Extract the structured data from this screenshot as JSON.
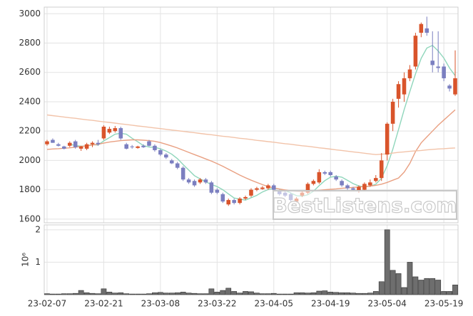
{
  "chart_data": {
    "type": "candlestick",
    "categories": [
      "23-02-07",
      null,
      null,
      null,
      null,
      null,
      null,
      null,
      null,
      null,
      "23-02-21",
      null,
      null,
      null,
      null,
      null,
      null,
      null,
      null,
      null,
      "23-03-08",
      null,
      null,
      null,
      null,
      null,
      null,
      null,
      null,
      null,
      "23-03-22",
      null,
      null,
      null,
      null,
      null,
      null,
      null,
      null,
      null,
      "23-04-05",
      null,
      null,
      null,
      null,
      null,
      null,
      null,
      null,
      null,
      "23-04-19",
      null,
      null,
      null,
      null,
      null,
      null,
      null,
      null,
      null,
      "23-05-04",
      null,
      null,
      null,
      null,
      null,
      null,
      null,
      null,
      null,
      "23-05-19",
      null,
      null
    ],
    "open": [
      2110,
      2140,
      2110,
      2095,
      2100,
      2130,
      2080,
      2080,
      2110,
      2120,
      2150,
      2190,
      2200,
      2220,
      2110,
      2095,
      2085,
      2100,
      2130,
      2100,
      2070,
      2040,
      2000,
      1980,
      1950,
      1870,
      1860,
      1850,
      1870,
      1850,
      1800,
      1770,
      1700,
      1730,
      1710,
      1740,
      1760,
      1800,
      1805,
      1810,
      1830,
      1790,
      1780,
      1770,
      1720,
      1760,
      1780,
      1840,
      1850,
      1920,
      1920,
      1890,
      1860,
      1830,
      1810,
      1790,
      1800,
      1830,
      1860,
      1880,
      2040,
      2250,
      2420,
      2450,
      2560,
      2640,
      2870,
      2900,
      2680,
      2640,
      2640,
      2510,
      2450
    ],
    "high": [
      2140,
      2150,
      2120,
      2100,
      2130,
      2140,
      2100,
      2120,
      2130,
      2140,
      2240,
      2230,
      2235,
      2230,
      2120,
      2105,
      2100,
      2110,
      2140,
      2110,
      2080,
      2050,
      2010,
      1990,
      1960,
      1880,
      1870,
      1880,
      1880,
      1860,
      1810,
      1780,
      1740,
      1740,
      1750,
      1760,
      1810,
      1820,
      1825,
      1840,
      1840,
      1800,
      1790,
      1780,
      1750,
      1790,
      1850,
      1870,
      1940,
      1930,
      1930,
      1900,
      1870,
      1840,
      1820,
      1830,
      1850,
      1870,
      1900,
      2050,
      2260,
      2420,
      2540,
      2600,
      2650,
      2870,
      2940,
      2980,
      2880,
      2880,
      2660,
      2520,
      2750
    ],
    "low": [
      2100,
      2120,
      2095,
      2075,
      2090,
      2080,
      2065,
      2070,
      2090,
      2100,
      2140,
      2180,
      2190,
      2140,
      2075,
      2080,
      2080,
      2085,
      2095,
      2060,
      2030,
      2010,
      1975,
      1940,
      1860,
      1840,
      1820,
      1840,
      1840,
      1770,
      1770,
      1710,
      1690,
      1700,
      1700,
      1730,
      1750,
      1790,
      1800,
      1800,
      1790,
      1760,
      1750,
      1720,
      1700,
      1750,
      1770,
      1830,
      1840,
      1900,
      1890,
      1860,
      1820,
      1800,
      1790,
      1780,
      1790,
      1820,
      1850,
      1860,
      2000,
      2200,
      2360,
      2400,
      2540,
      2620,
      2840,
      2850,
      2600,
      2600,
      2540,
      2470,
      2440
    ],
    "close": [
      2130,
      2120,
      2100,
      2080,
      2120,
      2090,
      2095,
      2110,
      2120,
      2110,
      2230,
      2215,
      2220,
      2150,
      2080,
      2090,
      2095,
      2090,
      2100,
      2070,
      2040,
      2020,
      1980,
      1950,
      1870,
      1850,
      1830,
      1870,
      1850,
      1780,
      1780,
      1720,
      1730,
      1710,
      1740,
      1750,
      1800,
      1810,
      1815,
      1830,
      1800,
      1770,
      1760,
      1730,
      1740,
      1780,
      1840,
      1860,
      1920,
      1910,
      1900,
      1870,
      1830,
      1810,
      1800,
      1820,
      1840,
      1850,
      1880,
      2000,
      2250,
      2400,
      2520,
      2560,
      2620,
      2850,
      2930,
      2870,
      2650,
      2630,
      2560,
      2490,
      2560
    ],
    "up_color": "#d9542b",
    "down_color": "#7b7fc0",
    "series": [
      {
        "color": "#8fd6bb",
        "values": [
          null,
          null,
          null,
          null,
          2110,
          2102,
          2097,
          2099,
          2107,
          2105,
          2133,
          2155,
          2179,
          2185,
          2179,
          2151,
          2127,
          2101,
          2091,
          2089,
          2079,
          2064,
          2042,
          2012,
          1972,
          1934,
          1896,
          1874,
          1854,
          1836,
          1822,
          1800,
          1772,
          1744,
          1736,
          1730,
          1746,
          1762,
          1785,
          1801,
          1811,
          1805,
          1795,
          1778,
          1760,
          1756,
          1766,
          1790,
          1828,
          1862,
          1886,
          1892,
          1886,
          1864,
          1842,
          1826,
          1820,
          1824,
          1838,
          1878,
          1964,
          2076,
          2210,
          2346,
          2470,
          2590,
          2696,
          2766,
          2784,
          2746,
          2698,
          2630,
          2578
        ]
      },
      {
        "color": "#e9a082",
        "values": [
          2075,
          2078,
          2080,
          2083,
          2086,
          2090,
          2095,
          2100,
          2105,
          2110,
          2118,
          2125,
          2130,
          2135,
          2138,
          2140,
          2140,
          2138,
          2135,
          2130,
          2122,
          2110,
          2098,
          2085,
          2070,
          2055,
          2040,
          2025,
          2010,
          1995,
          1978,
          1960,
          1940,
          1920,
          1900,
          1882,
          1865,
          1850,
          1835,
          1822,
          1812,
          1805,
          1798,
          1793,
          1790,
          1789,
          1790,
          1793,
          1796,
          1800,
          1803,
          1806,
          1810,
          1813,
          1816,
          1819,
          1822,
          1825,
          1830,
          1838,
          1850,
          1865,
          1880,
          1920,
          1980,
          2060,
          2120,
          2160,
          2200,
          2240,
          2275,
          2310,
          2345
        ]
      },
      {
        "color": "#f2c3a9",
        "values": [
          2310,
          2305,
          2301,
          2296,
          2291,
          2287,
          2282,
          2277,
          2273,
          2268,
          2263,
          2259,
          2254,
          2249,
          2245,
          2240,
          2235,
          2231,
          2226,
          2221,
          2217,
          2212,
          2207,
          2203,
          2198,
          2193,
          2189,
          2184,
          2179,
          2175,
          2170,
          2165,
          2161,
          2156,
          2151,
          2147,
          2142,
          2137,
          2133,
          2128,
          2124,
          2119,
          2114,
          2110,
          2105,
          2100,
          2096,
          2091,
          2086,
          2082,
          2077,
          2072,
          2068,
          2063,
          2058,
          2054,
          2049,
          2044,
          2040,
          2042,
          2045,
          2050,
          2055,
          2058,
          2062,
          2065,
          2068,
          2072,
          2075,
          2078,
          2080,
          2083,
          2085
        ]
      }
    ],
    "ylim": [
      1575,
      3045
    ],
    "yticks": [
      1600,
      1800,
      2000,
      2200,
      2400,
      2600,
      2800,
      3000
    ],
    "grid": true,
    "watermark": "BestListens.com",
    "volume": {
      "type": "bar",
      "color": "#6e6e6e",
      "ylabel": "10⁶",
      "ylim": [
        0,
        2.15
      ],
      "yticks": [
        1,
        2
      ],
      "values": [
        0.03,
        0.02,
        0.02,
        0.03,
        0.03,
        0.04,
        0.13,
        0.06,
        0.04,
        0.03,
        0.18,
        0.08,
        0.05,
        0.06,
        0.03,
        0.02,
        0.02,
        0.02,
        0.03,
        0.06,
        0.07,
        0.05,
        0.05,
        0.06,
        0.08,
        0.05,
        0.04,
        0.03,
        0.03,
        0.18,
        0.08,
        0.13,
        0.2,
        0.1,
        0.05,
        0.1,
        0.09,
        0.05,
        0.03,
        0.03,
        0.04,
        0.02,
        0.02,
        0.02,
        0.06,
        0.06,
        0.05,
        0.06,
        0.11,
        0.12,
        0.08,
        0.07,
        0.06,
        0.06,
        0.05,
        0.04,
        0.04,
        0.05,
        0.1,
        0.4,
        2.0,
        0.75,
        0.65,
        0.22,
        1.0,
        0.55,
        0.45,
        0.5,
        0.5,
        0.45,
        0.1,
        0.1,
        0.3
      ]
    }
  }
}
